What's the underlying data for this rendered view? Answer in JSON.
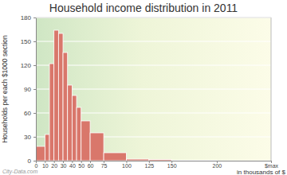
{
  "chart_data": {
    "type": "histogram",
    "title": "Household income distribution in 2011",
    "y_label": "Households per each $1000 section",
    "x_label": "in thousands of $",
    "annotations": [
      "City-Data.com"
    ],
    "bins": [
      0,
      10,
      15,
      20,
      25,
      30,
      35,
      40,
      45,
      50,
      60,
      75,
      100,
      125,
      150,
      200
    ],
    "values": [
      18,
      33,
      122,
      164,
      160,
      136,
      95,
      82,
      67,
      50,
      35,
      10,
      2,
      1.5,
      0.5
    ],
    "color": "#d9776b",
    "xlim": [
      0,
      260
    ],
    "xticks": [
      0,
      10,
      20,
      30,
      40,
      50,
      60,
      75,
      100,
      125,
      150,
      200,
      {
        "value": 260,
        "label": "$max"
      }
    ],
    "ylim": [
      0,
      180
    ],
    "yticks": [
      0,
      30,
      60,
      90,
      120,
      150,
      180
    ],
    "grid": true
  }
}
